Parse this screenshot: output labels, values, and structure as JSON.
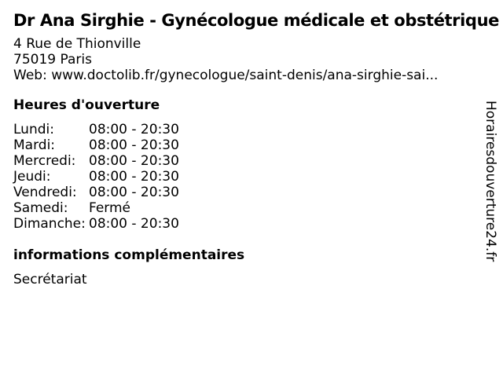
{
  "header": {
    "title": "Dr Ana Sirghie - Gynécologue médicale et obstétrique",
    "address_line1": "4 Rue de Thionville",
    "address_line2": "75019 Paris",
    "web_line": "Web: www.doctolib.fr/gynecologue/saint-denis/ana-sirghie-sai..."
  },
  "hours": {
    "heading": "Heures d'ouverture",
    "rows": [
      {
        "day": "Lundi:",
        "time": "08:00 - 20:30"
      },
      {
        "day": "Mardi:",
        "time": "08:00 - 20:30"
      },
      {
        "day": "Mercredi:",
        "time": "08:00 - 20:30"
      },
      {
        "day": "Jeudi:",
        "time": "08:00 - 20:30"
      },
      {
        "day": "Vendredi:",
        "time": "08:00 - 20:30"
      },
      {
        "day": "Samedi:",
        "time": "Fermé"
      },
      {
        "day": "Dimanche:",
        "time": "08:00 - 20:30"
      }
    ]
  },
  "extra_info": {
    "heading": "informations complémentaires",
    "text": "Secrétariat"
  },
  "watermark": {
    "text": "Horairesdouverture24.fr"
  },
  "colors": {
    "text": "#000000",
    "background": "#ffffff"
  }
}
